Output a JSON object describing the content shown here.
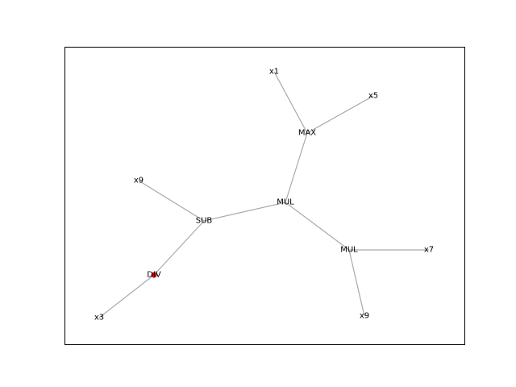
{
  "diagram": {
    "type": "tree",
    "nodes": [
      {
        "id": "n0",
        "label": "MUL"
      },
      {
        "id": "n1",
        "label": "MAX"
      },
      {
        "id": "n2",
        "label": "x1"
      },
      {
        "id": "n3",
        "label": "x5"
      },
      {
        "id": "n4",
        "label": "SUB"
      },
      {
        "id": "n5",
        "label": "x9"
      },
      {
        "id": "n6",
        "label": "DIV"
      },
      {
        "id": "n7",
        "label": "x3"
      },
      {
        "id": "n8",
        "label": "MUL"
      },
      {
        "id": "n9",
        "label": "x7"
      },
      {
        "id": "n10",
        "label": "x9"
      }
    ],
    "edges": [
      [
        "n0",
        "n1"
      ],
      [
        "n1",
        "n2"
      ],
      [
        "n1",
        "n3"
      ],
      [
        "n0",
        "n4"
      ],
      [
        "n4",
        "n5"
      ],
      [
        "n4",
        "n6"
      ],
      [
        "n6",
        "n7"
      ],
      [
        "n0",
        "n8"
      ],
      [
        "n8",
        "n9"
      ],
      [
        "n8",
        "n10"
      ]
    ],
    "highlighted_node": "n6",
    "colors": {
      "edge": "#a9a9a9",
      "label": "#000000",
      "highlight": "#cc0000",
      "frame": "#000000"
    }
  }
}
